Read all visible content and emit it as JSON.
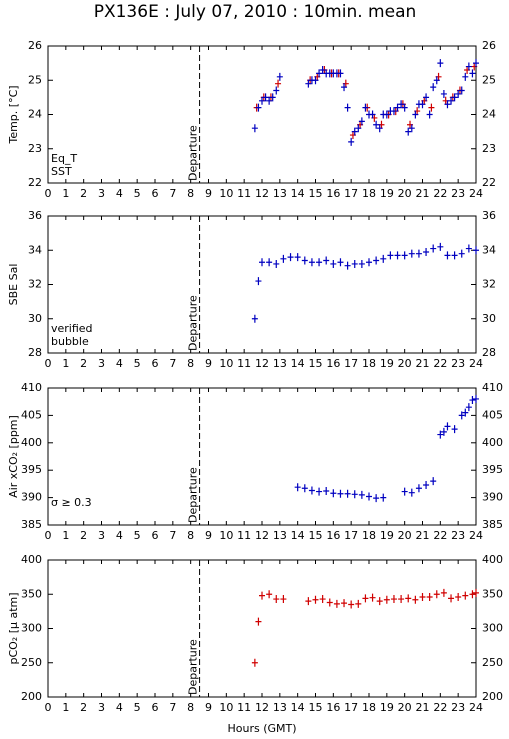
{
  "title": "PX136E : July 07, 2010 : 10min. mean",
  "chart_data": [
    {
      "type": "scatter",
      "ylabel": "Temp. [°C]",
      "xlim": [
        0,
        24
      ],
      "ylim": [
        22,
        26
      ],
      "xticks": [
        0,
        1,
        2,
        3,
        4,
        5,
        6,
        7,
        8,
        9,
        10,
        11,
        12,
        13,
        14,
        15,
        16,
        17,
        18,
        19,
        20,
        21,
        22,
        23,
        24
      ],
      "yticks": [
        22,
        23,
        24,
        25,
        26
      ],
      "annotation": "Departure",
      "departure_x": 8.5,
      "legend": "lower left",
      "series": [
        {
          "name": "Eq_T",
          "color": "#d00000",
          "x": [
            11.7,
            12.1,
            12.5,
            12.9,
            14.7,
            15.1,
            15.5,
            15.9,
            16.3,
            16.7,
            17.1,
            17.5,
            17.9,
            18.3,
            18.7,
            19.1,
            19.5,
            19.9,
            20.3,
            20.7,
            21.1,
            21.5,
            21.9,
            22.3,
            22.7,
            23.1,
            23.5,
            23.9
          ],
          "values": [
            24.2,
            24.5,
            24.5,
            24.9,
            25.0,
            25.1,
            25.3,
            25.2,
            25.2,
            24.9,
            23.4,
            23.7,
            24.2,
            23.9,
            23.7,
            24.0,
            24.1,
            24.3,
            23.7,
            24.1,
            24.4,
            24.2,
            25.1,
            24.4,
            24.5,
            24.7,
            25.3,
            25.4
          ]
        },
        {
          "name": "SST",
          "color": "#0000c0",
          "x": [
            11.6,
            11.8,
            12,
            12.2,
            12.4,
            12.6,
            12.8,
            13,
            14.6,
            14.8,
            15,
            15.2,
            15.4,
            15.6,
            15.8,
            16,
            16.2,
            16.4,
            16.6,
            16.8,
            17,
            17.2,
            17.4,
            17.6,
            17.8,
            18,
            18.2,
            18.4,
            18.6,
            18.8,
            19,
            19.2,
            19.4,
            19.6,
            19.8,
            20,
            20.2,
            20.4,
            20.6,
            20.8,
            21,
            21.2,
            21.4,
            21.6,
            21.8,
            22,
            22.2,
            22.4,
            22.6,
            22.8,
            23,
            23.2,
            23.4,
            23.6,
            23.8,
            24
          ],
          "values": [
            23.6,
            24.2,
            24.4,
            24.5,
            24.4,
            24.5,
            24.7,
            25.1,
            24.9,
            25.0,
            25.0,
            25.2,
            25.3,
            25.2,
            25.2,
            25.2,
            25.2,
            25.2,
            24.8,
            24.2,
            23.2,
            23.5,
            23.6,
            23.8,
            24.2,
            24.0,
            24.0,
            23.7,
            23.6,
            24.0,
            24.0,
            24.1,
            24.1,
            24.2,
            24.3,
            24.2,
            23.5,
            23.6,
            24.0,
            24.3,
            24.3,
            24.5,
            24.0,
            24.8,
            25.0,
            25.5,
            24.6,
            24.3,
            24.4,
            24.5,
            24.6,
            24.7,
            25.1,
            25.4,
            25.2,
            25.5
          ]
        }
      ]
    },
    {
      "type": "scatter",
      "ylabel": "SBE Sal",
      "xlim": [
        0,
        24
      ],
      "ylim": [
        28,
        36
      ],
      "xticks": [
        0,
        1,
        2,
        3,
        4,
        5,
        6,
        7,
        8,
        9,
        10,
        11,
        12,
        13,
        14,
        15,
        16,
        17,
        18,
        19,
        20,
        21,
        22,
        23,
        24
      ],
      "yticks": [
        28,
        30,
        32,
        34,
        36
      ],
      "annotation": "Departure",
      "departure_x": 8.5,
      "legend": "lower left",
      "series": [
        {
          "name": "verified",
          "color": "#0000c0",
          "x": [
            11.6,
            11.8,
            12,
            12.4,
            12.8,
            13.2,
            13.6,
            14,
            14.4,
            14.8,
            15.2,
            15.6,
            16,
            16.4,
            16.8,
            17.2,
            17.6,
            18,
            18.4,
            18.8,
            19.2,
            19.6,
            20,
            20.4,
            20.8,
            21.2,
            21.6,
            22,
            22.4,
            22.8,
            23.2,
            23.6,
            24
          ],
          "values": [
            30.0,
            32.2,
            33.3,
            33.3,
            33.2,
            33.5,
            33.6,
            33.6,
            33.4,
            33.3,
            33.3,
            33.4,
            33.2,
            33.3,
            33.1,
            33.2,
            33.2,
            33.3,
            33.4,
            33.5,
            33.7,
            33.7,
            33.7,
            33.8,
            33.8,
            33.9,
            34.1,
            34.2,
            33.7,
            33.7,
            33.8,
            34.1,
            34.0
          ]
        },
        {
          "name": "bubble",
          "color": "#e000e0",
          "x": [],
          "values": []
        }
      ]
    },
    {
      "type": "scatter",
      "ylabel": "Air xCO₂ [ppm]",
      "xlim": [
        0,
        24
      ],
      "ylim": [
        385,
        410
      ],
      "xticks": [
        0,
        1,
        2,
        3,
        4,
        5,
        6,
        7,
        8,
        9,
        10,
        11,
        12,
        13,
        14,
        15,
        16,
        17,
        18,
        19,
        20,
        21,
        22,
        23,
        24
      ],
      "yticks": [
        385,
        390,
        395,
        400,
        405,
        410
      ],
      "annotation": "Departure",
      "departure_x": 8.5,
      "note": "σ ≥ 0.3",
      "note_color": "#e000e0",
      "series": [
        {
          "color": "#0000c0",
          "x": [
            14,
            14.4,
            14.8,
            15.2,
            15.6,
            16,
            16.4,
            16.8,
            17.2,
            17.6,
            18,
            18.4,
            18.8,
            20,
            20.4,
            20.8,
            21.2,
            21.6,
            22,
            22.2,
            22.4,
            22.8,
            23.2,
            23.4,
            23.6,
            23.8,
            24
          ],
          "values": [
            391.9,
            391.7,
            391.3,
            391.1,
            391.2,
            390.8,
            390.7,
            390.7,
            390.6,
            390.5,
            390.2,
            389.9,
            390.0,
            391.1,
            390.9,
            391.7,
            392.3,
            393.0,
            401.5,
            402.0,
            403.0,
            402.5,
            405.0,
            405.5,
            406.5,
            407.8,
            408.0
          ]
        }
      ]
    },
    {
      "type": "scatter",
      "ylabel": "pCO₂ [μ atm]",
      "xlabel": "Hours (GMT)",
      "xlim": [
        0,
        24
      ],
      "ylim": [
        200,
        400
      ],
      "xticks": [
        0,
        1,
        2,
        3,
        4,
        5,
        6,
        7,
        8,
        9,
        10,
        11,
        12,
        13,
        14,
        15,
        16,
        17,
        18,
        19,
        20,
        21,
        22,
        23,
        24
      ],
      "yticks": [
        200,
        250,
        300,
        350,
        400
      ],
      "annotation": "Departure",
      "departure_x": 8.5,
      "series": [
        {
          "color": "#d00000",
          "x": [
            11.6,
            11.8,
            12,
            12.4,
            12.8,
            13.2,
            14.6,
            15,
            15.4,
            15.8,
            16.2,
            16.6,
            17,
            17.4,
            17.8,
            18.2,
            18.6,
            19,
            19.4,
            19.8,
            20.2,
            20.6,
            21,
            21.4,
            21.8,
            22.2,
            22.6,
            23,
            23.4,
            23.8,
            24
          ],
          "values": [
            250,
            310,
            348,
            350,
            343,
            343,
            340,
            342,
            343,
            338,
            336,
            337,
            335,
            336,
            344,
            345,
            340,
            342,
            343,
            343,
            344,
            342,
            346,
            346,
            350,
            352,
            344,
            346,
            348,
            350,
            352
          ]
        }
      ]
    }
  ]
}
